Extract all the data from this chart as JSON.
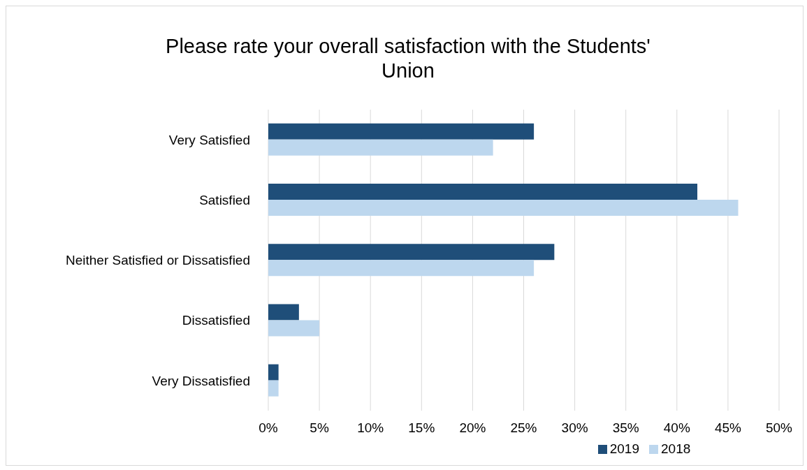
{
  "chart_data": {
    "type": "bar",
    "orientation": "horizontal",
    "title": "Please rate your overall satisfaction with the Students' Union",
    "categories": [
      "Very Satisfied",
      "Satisfied",
      "Neither Satisfied or Dissatisfied",
      "Dissatisfied",
      "Very Dissatisfied"
    ],
    "series": [
      {
        "name": "2019",
        "color": "#1f4e79",
        "values": [
          26,
          42,
          28,
          3,
          1
        ]
      },
      {
        "name": "2018",
        "color": "#bdd7ee",
        "values": [
          22,
          46,
          26,
          5,
          1
        ]
      }
    ],
    "xlim": [
      0,
      50
    ],
    "xticks": [
      {
        "value": 0,
        "label": "0%"
      },
      {
        "value": 5,
        "label": "5%"
      },
      {
        "value": 10,
        "label": "10%"
      },
      {
        "value": 15,
        "label": "15%"
      },
      {
        "value": 20,
        "label": "20%"
      },
      {
        "value": 25,
        "label": "25%"
      },
      {
        "value": 30,
        "label": "30%"
      },
      {
        "value": 35,
        "label": "35%"
      },
      {
        "value": 40,
        "label": "40%"
      },
      {
        "value": 45,
        "label": "45%"
      },
      {
        "value": 50,
        "label": "50%"
      }
    ],
    "grid": "x",
    "legend": "bottom"
  }
}
